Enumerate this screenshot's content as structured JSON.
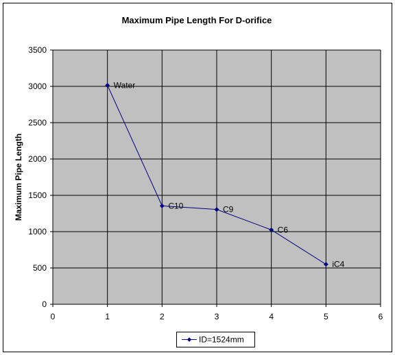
{
  "chart_data": {
    "type": "line",
    "title": "Maximum Pipe Length For D-orifice",
    "xlabel": "",
    "ylabel": "Maximum Pipe Length",
    "xlim": [
      0,
      6
    ],
    "ylim": [
      0,
      3500
    ],
    "xticks": [
      0,
      1,
      2,
      3,
      4,
      5,
      6
    ],
    "yticks": [
      0,
      500,
      1000,
      1500,
      2000,
      2500,
      3000,
      3500
    ],
    "grid": true,
    "legend_position": "bottom",
    "plot_background": "#c0c0c0",
    "series": [
      {
        "name": "ID=1524mm",
        "color": "#000080",
        "marker": "diamond",
        "x": [
          1,
          2,
          3,
          4,
          5
        ],
        "y": [
          3015,
          1355,
          1305,
          1025,
          550
        ],
        "point_labels": [
          "Water",
          "C10",
          "C9",
          "C6",
          "iC4"
        ]
      }
    ]
  }
}
